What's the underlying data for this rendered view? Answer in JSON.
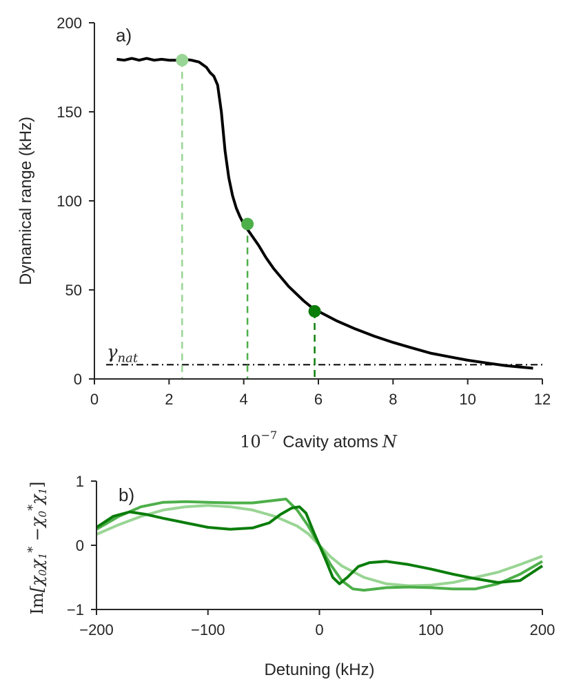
{
  "chart_data": [
    {
      "type": "line",
      "panel_label": "a)",
      "xlabel_prefix": "10",
      "xlabel_exp": "−7",
      "xlabel_text": "Cavity atoms",
      "xlabel_var": "N",
      "ylabel": "Dynamical range (kHz)",
      "xlim": [
        0,
        12
      ],
      "ylim": [
        0,
        200
      ],
      "xticks": [
        0,
        2,
        4,
        6,
        8,
        10,
        12
      ],
      "yticks": [
        0,
        50,
        100,
        150,
        200
      ],
      "series": [
        {
          "name": "dynamical range",
          "color": "#000000",
          "x": [
            0.6,
            0.8,
            1.0,
            1.2,
            1.4,
            1.6,
            1.8,
            2.0,
            2.2,
            2.4,
            2.6,
            2.8,
            3.0,
            3.1,
            3.2,
            3.3,
            3.4,
            3.5,
            3.6,
            3.7,
            3.8,
            3.9,
            4.0,
            4.1,
            4.2,
            4.4,
            4.6,
            4.8,
            5.0,
            5.2,
            5.4,
            5.6,
            5.8,
            6.0,
            6.5,
            7.0,
            7.5,
            8.0,
            8.5,
            9.0,
            9.5,
            10.0,
            10.5,
            11.0,
            11.5,
            11.75
          ],
          "y": [
            179.5,
            179,
            180,
            179,
            180,
            179,
            179.5,
            179,
            179,
            179.5,
            179,
            178,
            175,
            172,
            170,
            165,
            150,
            128,
            113,
            103,
            96,
            91,
            87,
            84,
            81,
            75,
            68,
            62,
            57,
            52,
            48,
            44,
            40.5,
            38,
            32.5,
            28,
            24,
            20.5,
            17.5,
            14.5,
            12.5,
            10.5,
            9,
            7.5,
            6.5,
            6
          ]
        }
      ],
      "hline": {
        "label": "γ",
        "label_sub": "nat",
        "y": 8,
        "style": "dashdot"
      },
      "markers": [
        {
          "x": 2.35,
          "y": 179,
          "color": "#99d594"
        },
        {
          "x": 4.1,
          "y": 87,
          "color": "#4daf4a"
        },
        {
          "x": 5.9,
          "y": 38,
          "color": "#0a7d0a"
        }
      ]
    },
    {
      "type": "line",
      "panel_label": "b)",
      "xlabel": "Detuning (kHz)",
      "ylabel_parts": [
        "Im",
        "[χ",
        "0",
        "χ",
        "1",
        "*",
        " −χ",
        "0",
        "*",
        "χ",
        "1",
        "]"
      ],
      "xlim": [
        -200,
        200
      ],
      "ylim": [
        -1,
        1
      ],
      "xticks": [
        -200,
        -100,
        0,
        100,
        200
      ],
      "xtick_labels": [
        "−200",
        "−100",
        "0",
        "100",
        "200"
      ],
      "yticks": [
        -1,
        0,
        1
      ],
      "ytick_labels": [
        "−1",
        "0",
        "1"
      ],
      "series": [
        {
          "name": "light",
          "color": "#99d594",
          "x": [
            -200,
            -180,
            -160,
            -140,
            -120,
            -100,
            -80,
            -60,
            -40,
            -20,
            -10,
            0,
            10,
            20,
            40,
            60,
            80,
            100,
            120,
            140,
            160,
            180,
            200
          ],
          "y": [
            0.17,
            0.32,
            0.45,
            0.55,
            0.6,
            0.62,
            0.6,
            0.55,
            0.45,
            0.3,
            0.18,
            0.0,
            -0.18,
            -0.32,
            -0.5,
            -0.6,
            -0.63,
            -0.62,
            -0.58,
            -0.5,
            -0.42,
            -0.3,
            -0.17
          ]
        },
        {
          "name": "medium",
          "color": "#4daf4a",
          "x": [
            -200,
            -180,
            -160,
            -140,
            -120,
            -100,
            -80,
            -60,
            -40,
            -30,
            -20,
            -10,
            0,
            10,
            20,
            30,
            40,
            60,
            80,
            100,
            120,
            140,
            160,
            180,
            200
          ],
          "y": [
            0.25,
            0.45,
            0.6,
            0.67,
            0.68,
            0.67,
            0.66,
            0.66,
            0.7,
            0.72,
            0.55,
            0.3,
            0.0,
            -0.3,
            -0.55,
            -0.68,
            -0.7,
            -0.66,
            -0.65,
            -0.66,
            -0.68,
            -0.68,
            -0.6,
            -0.45,
            -0.25
          ]
        },
        {
          "name": "dark",
          "color": "#0a7d0a",
          "x": [
            -200,
            -185,
            -170,
            -155,
            -140,
            -120,
            -100,
            -80,
            -60,
            -45,
            -35,
            -25,
            -18,
            -12,
            -5,
            0,
            5,
            12,
            18,
            25,
            35,
            45,
            60,
            80,
            100,
            120,
            140,
            160,
            180,
            200
          ],
          "y": [
            0.28,
            0.45,
            0.52,
            0.48,
            0.42,
            0.35,
            0.28,
            0.25,
            0.27,
            0.35,
            0.48,
            0.58,
            0.6,
            0.5,
            0.2,
            0.0,
            -0.2,
            -0.5,
            -0.6,
            -0.5,
            -0.33,
            -0.27,
            -0.25,
            -0.3,
            -0.37,
            -0.45,
            -0.52,
            -0.58,
            -0.55,
            -0.32
          ]
        }
      ]
    }
  ]
}
